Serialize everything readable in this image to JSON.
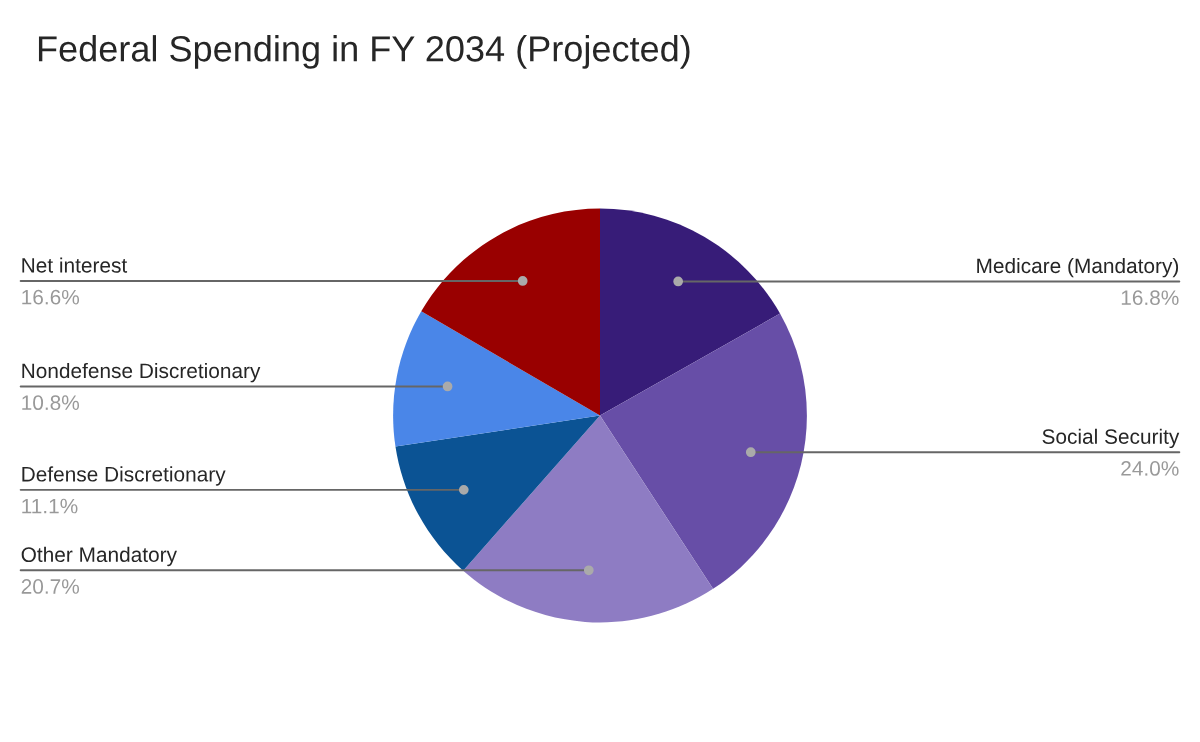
{
  "chart_data": {
    "type": "pie",
    "title": "Federal Spending in FY 2034 (Projected)",
    "categories": [
      "Medicare (Mandatory)",
      "Social Security",
      "Other Mandatory",
      "Defense Discretionary",
      "Nondefense Discretionary",
      "Net interest"
    ],
    "values": [
      16.8,
      24.0,
      20.7,
      11.1,
      10.8,
      16.6
    ],
    "value_labels": [
      "16.8%",
      "24.0%",
      "20.7%",
      "11.1%",
      "10.8%",
      "16.6%"
    ],
    "colors": [
      "#371c78",
      "#674ea7",
      "#8e7cc3",
      "#0b5394",
      "#4a86e8",
      "#990000"
    ],
    "legend": false
  }
}
